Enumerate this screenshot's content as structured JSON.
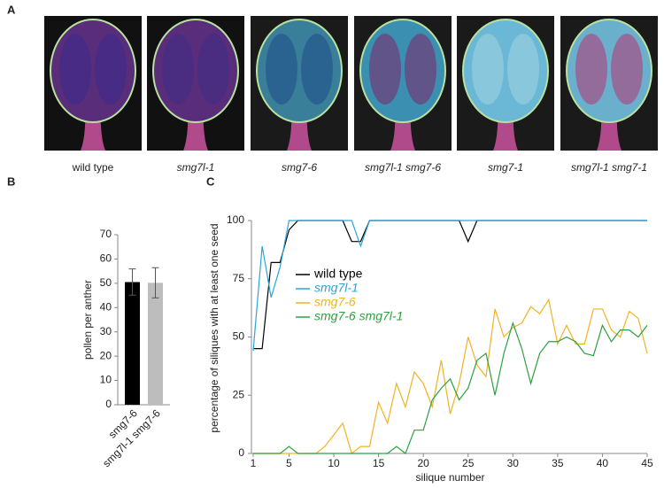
{
  "figure": {
    "panel_labels": [
      "A",
      "B",
      "C"
    ],
    "captions": [
      "wild type",
      "smg7l-1",
      "smg7-6",
      "smg7l-1 smg7-6",
      "smg7-1",
      "smg7l-1 smg7-1"
    ]
  },
  "chart_data": [
    {
      "type": "bar",
      "ylabel": "pollen per anther",
      "categories": [
        "smg7-6",
        "smg7l-1 smg7-6"
      ],
      "values": [
        50.5,
        50.2
      ],
      "errors": [
        5.4,
        6.2
      ],
      "colors": [
        "#000000",
        "#bdbdbd"
      ],
      "ylim": [
        0,
        70
      ],
      "yticks": [
        0,
        10,
        20,
        30,
        40,
        50,
        60,
        70
      ]
    },
    {
      "type": "line",
      "xlabel": "silique number",
      "ylabel": "percentage of siliques with at least one seed",
      "x": [
        1,
        2,
        3,
        4,
        5,
        6,
        7,
        8,
        9,
        10,
        11,
        12,
        13,
        14,
        15,
        16,
        17,
        18,
        19,
        20,
        21,
        22,
        23,
        24,
        25,
        26,
        27,
        28,
        29,
        30,
        31,
        32,
        33,
        34,
        35,
        36,
        37,
        38,
        39,
        40,
        41,
        42,
        43,
        44,
        45
      ],
      "series": [
        {
          "name": "wild type",
          "color": "#000000",
          "values": [
            45,
            45,
            82,
            82,
            96,
            100,
            100,
            100,
            100,
            100,
            100,
            91,
            91,
            100,
            100,
            100,
            100,
            100,
            100,
            100,
            100,
            100,
            100,
            100,
            91,
            100,
            100,
            100,
            100,
            100,
            100,
            100,
            100,
            100,
            100,
            100,
            100,
            100,
            100,
            100,
            100,
            100,
            100,
            100,
            100
          ]
        },
        {
          "name": "smg7l-1",
          "color": "#2aa5d8",
          "values": [
            44,
            89,
            67,
            80,
            100,
            100,
            100,
            100,
            100,
            100,
            100,
            100,
            89,
            100,
            100,
            100,
            100,
            100,
            100,
            100,
            100,
            100,
            100,
            100,
            100,
            100,
            100,
            100,
            100,
            100,
            100,
            100,
            100,
            100,
            100,
            100,
            100,
            100,
            100,
            100,
            100,
            100,
            100,
            100,
            100
          ]
        },
        {
          "name": "smg7-6",
          "color": "#f0b323",
          "values": [
            0,
            0,
            0,
            0,
            0,
            0,
            0,
            0,
            3,
            8,
            13,
            0,
            3,
            3,
            22,
            13,
            30,
            20,
            35,
            30,
            20,
            40,
            17,
            30,
            50,
            38,
            33,
            62,
            50,
            54,
            56,
            63,
            60,
            66,
            47,
            55,
            47,
            47,
            62,
            62,
            53,
            50,
            61,
            58,
            43
          ]
        },
        {
          "name": "smg7-6 smg7l-1",
          "color": "#2ca040",
          "values": [
            0,
            0,
            0,
            0,
            3,
            0,
            0,
            0,
            0,
            0,
            0,
            0,
            0,
            0,
            0,
            0,
            3,
            0,
            10,
            10,
            23,
            28,
            32,
            23,
            28,
            40,
            43,
            25,
            43,
            56,
            45,
            30,
            43,
            48,
            48,
            50,
            48,
            43,
            42,
            55,
            48,
            53,
            53,
            50,
            55
          ]
        }
      ],
      "xlim": [
        1,
        45
      ],
      "xticks": [
        1,
        5,
        10,
        15,
        20,
        25,
        30,
        35,
        40,
        45
      ],
      "ylim": [
        0,
        100
      ],
      "yticks": [
        0,
        25,
        50,
        75,
        100
      ]
    }
  ]
}
